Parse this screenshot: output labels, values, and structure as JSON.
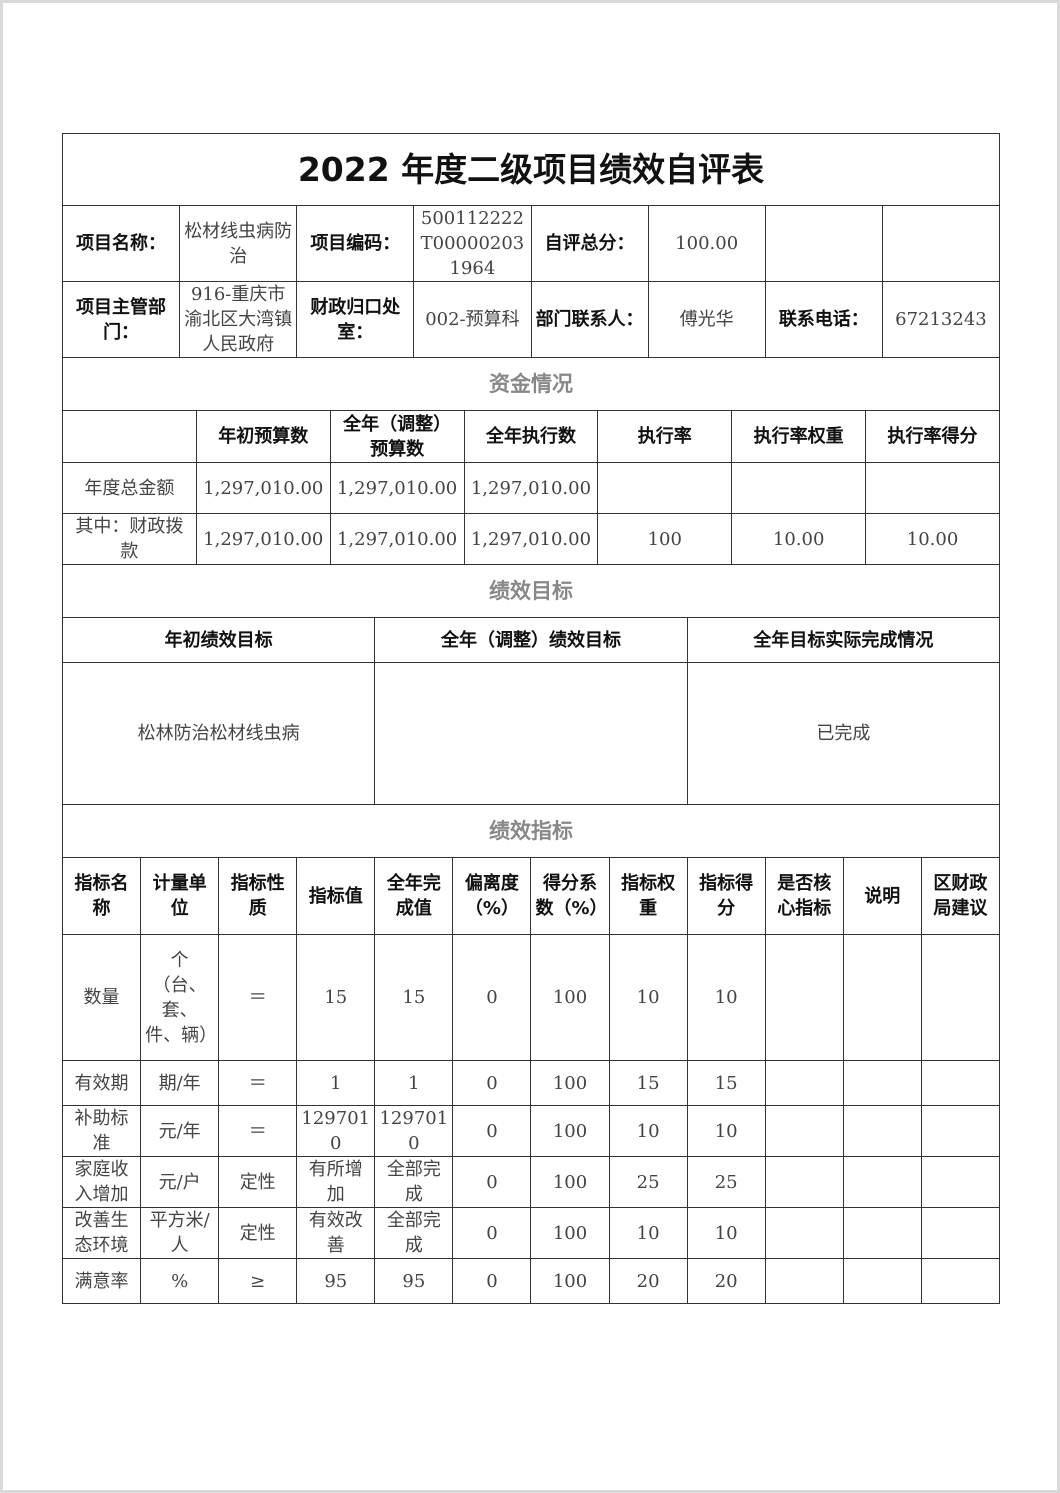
{
  "title": "2022 年度二级项目绩效自评表",
  "info": {
    "rows": [
      [
        {
          "t": "项目名称：",
          "l": 1
        },
        {
          "t": "松材线虫病防治"
        },
        {
          "t": "项目编码：",
          "l": 1
        },
        {
          "t": "500112222T000002031964"
        },
        {
          "t": "自评总分：",
          "l": 1
        },
        {
          "t": "100.00"
        },
        {
          "t": ""
        },
        {
          "t": ""
        }
      ],
      [
        {
          "t": "项目主管部门：",
          "l": 1
        },
        {
          "t": "916-重庆市渝北区大湾镇人民政府"
        },
        {
          "t": "财政归口处室：",
          "l": 1
        },
        {
          "t": "002-预算科"
        },
        {
          "t": "部门联系人：",
          "l": 1
        },
        {
          "t": "傅光华"
        },
        {
          "t": "联系电话：",
          "l": 1
        },
        {
          "t": "67213243"
        }
      ]
    ]
  },
  "funds": {
    "section": "资金情况",
    "headers": [
      "",
      "年初预算数",
      "全年（调整）预算数",
      "全年执行数",
      "执行率",
      "执行率权重",
      "执行率得分"
    ],
    "rows": [
      [
        "年度总金额",
        "1,297,010.00",
        "1,297,010.00",
        "1,297,010.00",
        "",
        "",
        ""
      ],
      [
        "其中：财政拨款",
        "1,297,010.00",
        "1,297,010.00",
        "1,297,010.00",
        "100",
        "10.00",
        "10.00"
      ]
    ]
  },
  "goals": {
    "section": "绩效目标",
    "headers": [
      "年初绩效目标",
      "全年（调整）绩效目标",
      "全年目标实际完成情况"
    ],
    "values": [
      "松林防治松材线虫病",
      "",
      "已完成"
    ]
  },
  "indicators": {
    "section": "绩效指标",
    "headers": [
      "指标名称",
      "计量单位",
      "指标性质",
      "指标值",
      "全年完成值",
      "偏离度（%）",
      "得分系数（%）",
      "指标权重",
      "指标得分",
      "是否核心指标",
      "说明",
      "区财政局建议"
    ],
    "rows": [
      [
        "数量",
        "个（台、套、件、辆）",
        "＝",
        "15",
        "15",
        "0",
        "100",
        "10",
        "10",
        "",
        "",
        ""
      ],
      [
        "有效期",
        "期/年",
        "＝",
        "1",
        "1",
        "0",
        "100",
        "15",
        "15",
        "",
        "",
        ""
      ],
      [
        "补助标准",
        "元/年",
        "＝",
        "1297010",
        "1297010",
        "0",
        "100",
        "10",
        "10",
        "",
        "",
        ""
      ],
      [
        "家庭收入增加",
        "元/户",
        "定性",
        "有所增加",
        "全部完成",
        "0",
        "100",
        "25",
        "25",
        "",
        "",
        ""
      ],
      [
        "改善生态环境",
        "平方米/人",
        "定性",
        "有效改善",
        "全部完成",
        "0",
        "100",
        "10",
        "10",
        "",
        "",
        ""
      ],
      [
        "满意率",
        "%",
        "≥",
        "95",
        "95",
        "0",
        "100",
        "20",
        "20",
        "",
        "",
        ""
      ]
    ]
  }
}
